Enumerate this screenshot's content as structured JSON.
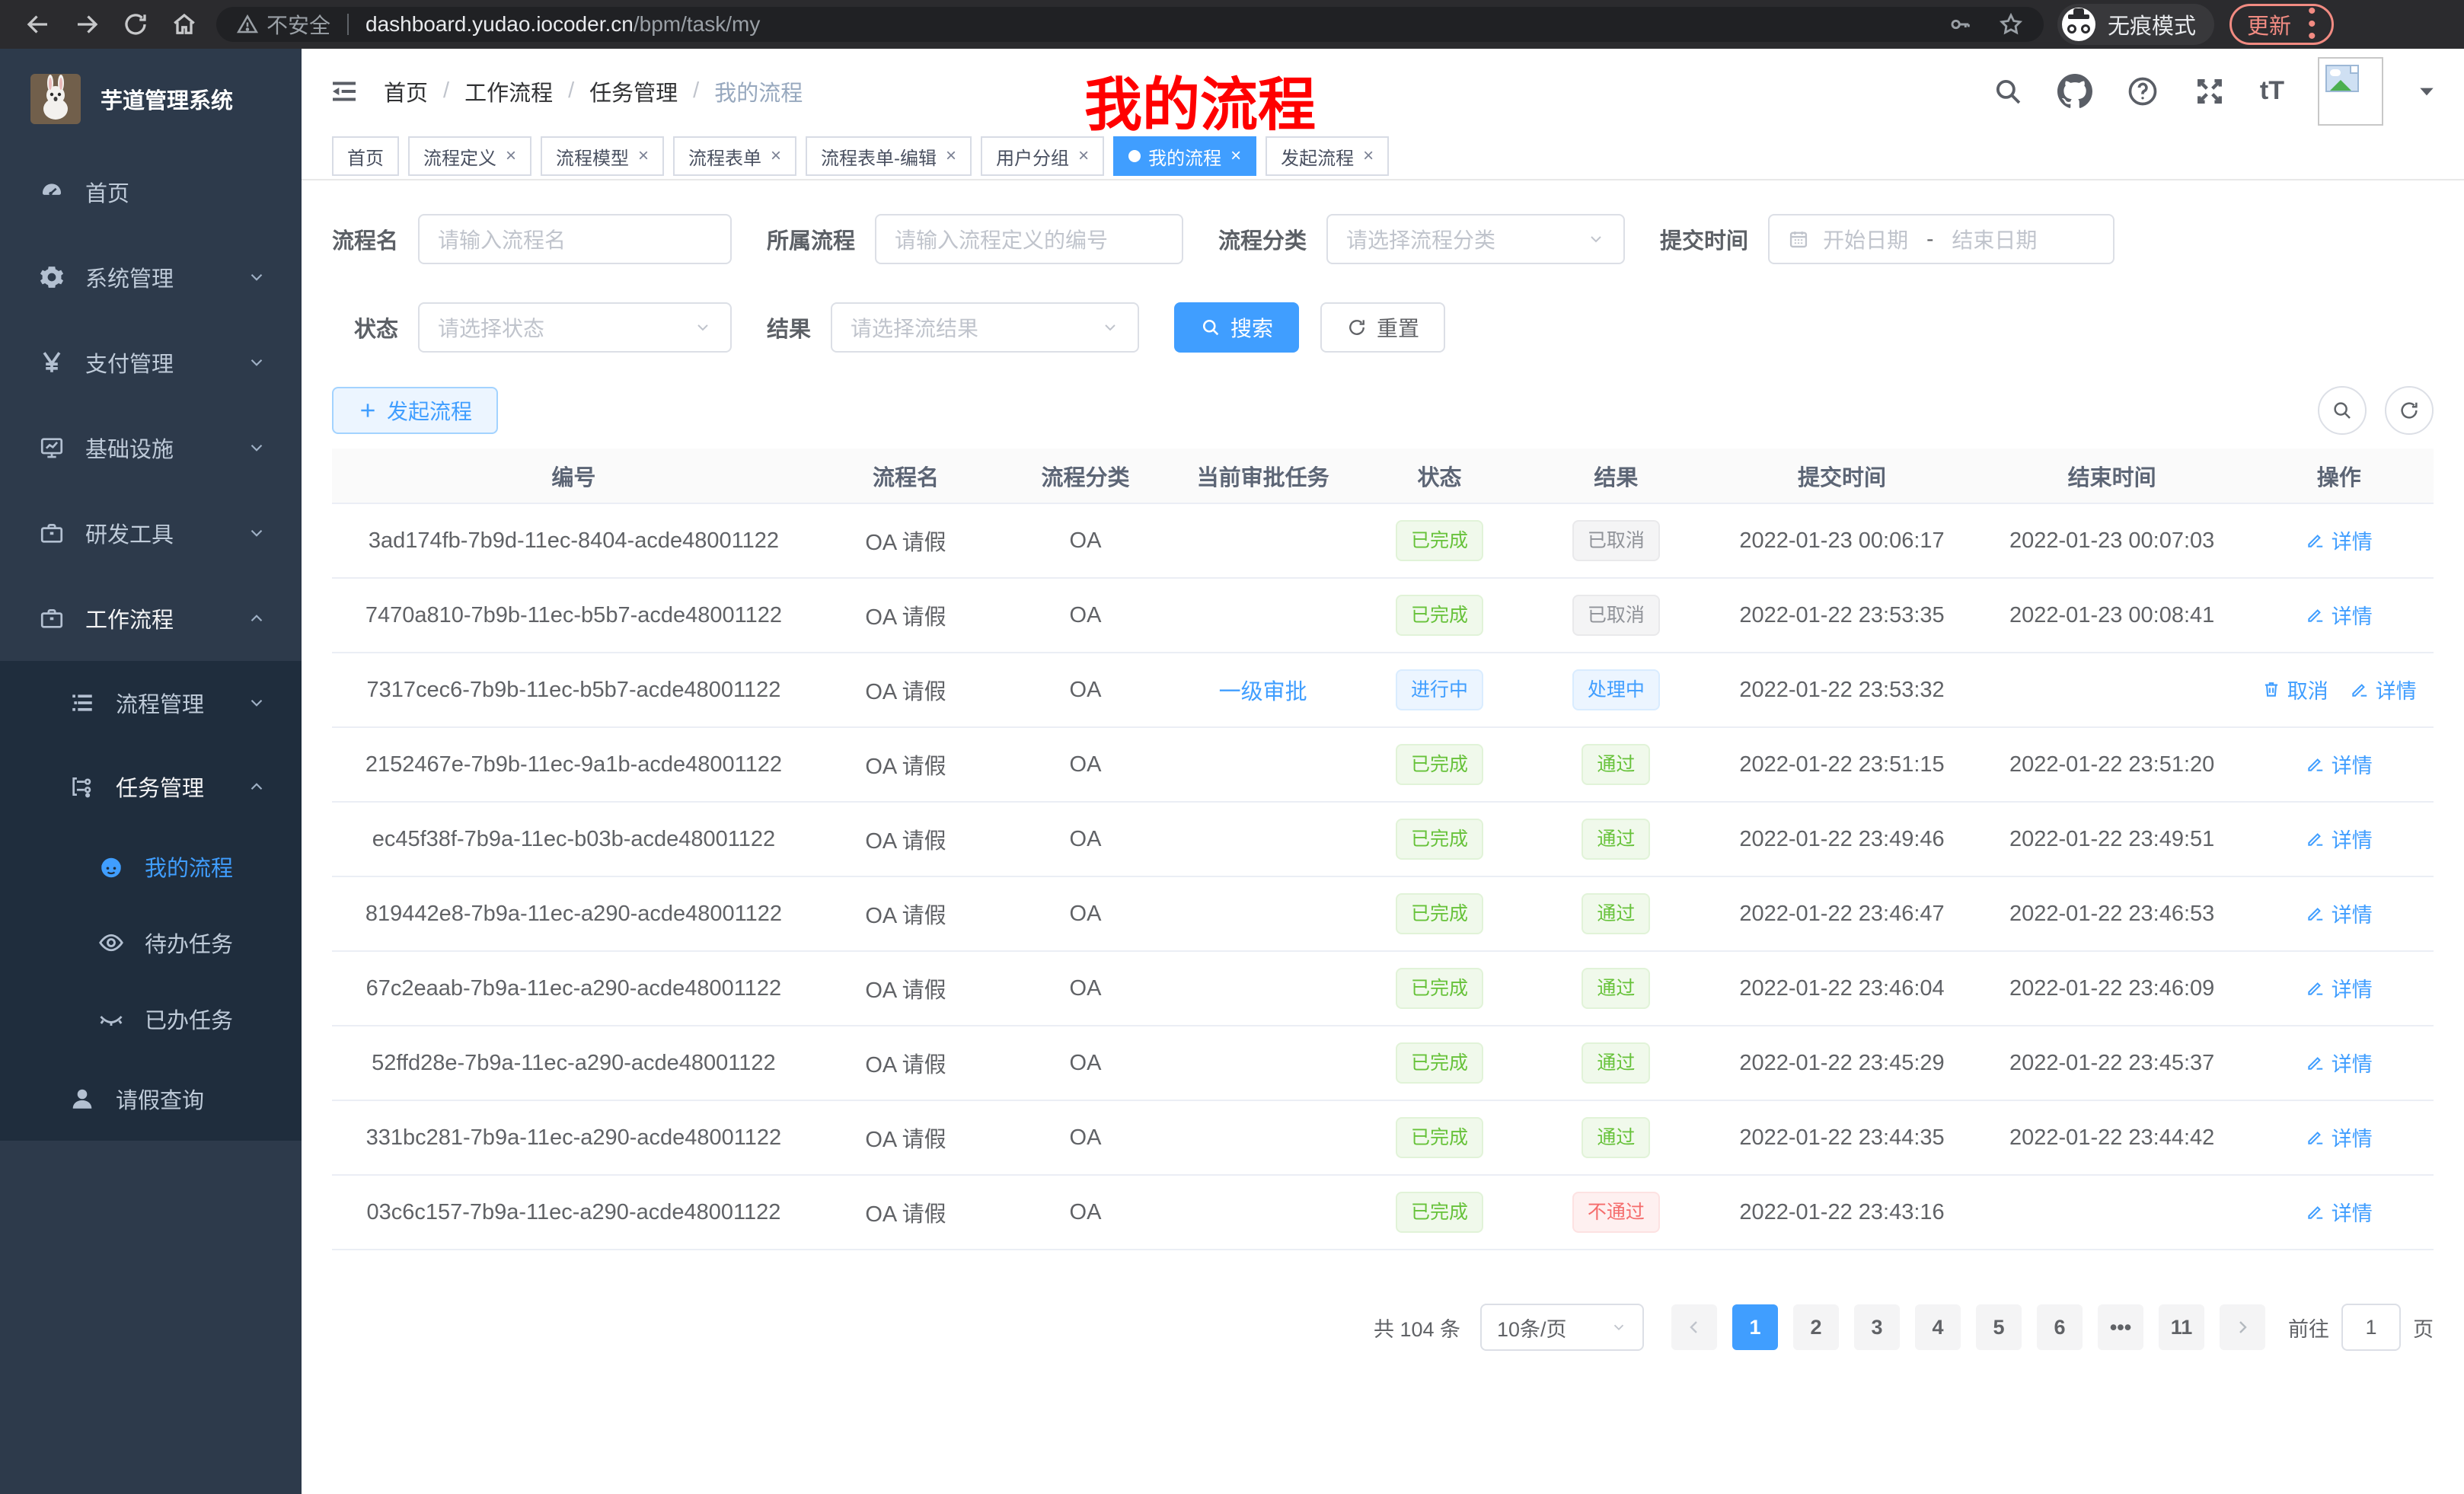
{
  "browser": {
    "security_label": "不安全",
    "url_host": "dashboard.yudao.iocoder.cn",
    "url_path": "/bpm/task/my",
    "incognito_label": "无痕模式",
    "update_label": "更新"
  },
  "sidebar": {
    "app_title": "芋道管理系统",
    "items": [
      {
        "label": "首页",
        "icon": "dashboard-icon",
        "level": 1
      },
      {
        "label": "系统管理",
        "icon": "gear-icon",
        "level": 1,
        "expand": "down"
      },
      {
        "label": "支付管理",
        "icon": "yen-icon",
        "level": 1,
        "expand": "down"
      },
      {
        "label": "基础设施",
        "icon": "monitor-icon",
        "level": 1,
        "expand": "down"
      },
      {
        "label": "研发工具",
        "icon": "briefcase-icon",
        "level": 1,
        "expand": "down"
      },
      {
        "label": "工作流程",
        "icon": "briefcase-icon",
        "level": 1,
        "expand": "up",
        "open": true
      },
      {
        "label": "流程管理",
        "icon": "list-icon",
        "level": 2,
        "expand": "down",
        "dark": true
      },
      {
        "label": "任务管理",
        "icon": "flow-icon",
        "level": 2,
        "expand": "up",
        "dark": true,
        "open": true
      },
      {
        "label": "我的流程",
        "icon": "face-icon",
        "level": 3,
        "dark": true,
        "active": true
      },
      {
        "label": "待办任务",
        "icon": "eye-icon",
        "level": 3,
        "dark": true
      },
      {
        "label": "已办任务",
        "icon": "eye-closed-icon",
        "level": 3,
        "dark": true
      },
      {
        "label": "请假查询",
        "icon": "person-icon",
        "level": 2,
        "dark": true
      }
    ]
  },
  "header": {
    "breadcrumb": [
      "首页",
      "工作流程",
      "任务管理",
      "我的流程"
    ],
    "annotation": "我的流程",
    "annotation_color": "#ff0000"
  },
  "tabs": [
    {
      "label": "首页",
      "closable": false,
      "active": false
    },
    {
      "label": "流程定义",
      "closable": true,
      "active": false
    },
    {
      "label": "流程模型",
      "closable": true,
      "active": false
    },
    {
      "label": "流程表单",
      "closable": true,
      "active": false
    },
    {
      "label": "流程表单-编辑",
      "closable": true,
      "active": false
    },
    {
      "label": "用户分组",
      "closable": true,
      "active": false
    },
    {
      "label": "我的流程",
      "closable": true,
      "active": true
    },
    {
      "label": "发起流程",
      "closable": true,
      "active": false
    }
  ],
  "filters": {
    "name": {
      "label": "流程名",
      "placeholder": "请输入流程名"
    },
    "process": {
      "label": "所属流程",
      "placeholder": "请输入流程定义的编号"
    },
    "category": {
      "label": "流程分类",
      "placeholder": "请选择流程分类"
    },
    "time": {
      "label": "提交时间",
      "start": "开始日期",
      "sep": "-",
      "end": "结束日期"
    },
    "status": {
      "label": "状态",
      "placeholder": "请选择状态"
    },
    "result": {
      "label": "结果",
      "placeholder": "请选择流结果"
    },
    "search_label": "搜索",
    "reset_label": "重置"
  },
  "toolbar": {
    "create_label": "发起流程"
  },
  "table": {
    "columns": [
      "编号",
      "流程名",
      "流程分类",
      "当前审批任务",
      "状态",
      "结果",
      "提交时间",
      "结束时间",
      "操作"
    ],
    "rows": [
      {
        "id": "3ad174fb-7b9d-11ec-8404-acde48001122",
        "name": "OA 请假",
        "category": "OA",
        "task": "",
        "status": {
          "text": "已完成",
          "type": "success"
        },
        "result": {
          "text": "已取消",
          "type": "info"
        },
        "submit": "2022-01-23 00:06:17",
        "end": "2022-01-23 00:07:03",
        "actions": [
          {
            "label": "详情",
            "icon": "pencil-icon"
          }
        ]
      },
      {
        "id": "7470a810-7b9b-11ec-b5b7-acde48001122",
        "name": "OA 请假",
        "category": "OA",
        "task": "",
        "status": {
          "text": "已完成",
          "type": "success"
        },
        "result": {
          "text": "已取消",
          "type": "info"
        },
        "submit": "2022-01-22 23:53:35",
        "end": "2022-01-23 00:08:41",
        "actions": [
          {
            "label": "详情",
            "icon": "pencil-icon"
          }
        ]
      },
      {
        "id": "7317cec6-7b9b-11ec-b5b7-acde48001122",
        "name": "OA 请假",
        "category": "OA",
        "task": "一级审批",
        "status": {
          "text": "进行中",
          "type": "primary"
        },
        "result": {
          "text": "处理中",
          "type": "primary"
        },
        "submit": "2022-01-22 23:53:32",
        "end": "",
        "actions": [
          {
            "label": "取消",
            "icon": "trash-icon"
          },
          {
            "label": "详情",
            "icon": "pencil-icon"
          }
        ]
      },
      {
        "id": "2152467e-7b9b-11ec-9a1b-acde48001122",
        "name": "OA 请假",
        "category": "OA",
        "task": "",
        "status": {
          "text": "已完成",
          "type": "success"
        },
        "result": {
          "text": "通过",
          "type": "success"
        },
        "submit": "2022-01-22 23:51:15",
        "end": "2022-01-22 23:51:20",
        "actions": [
          {
            "label": "详情",
            "icon": "pencil-icon"
          }
        ]
      },
      {
        "id": "ec45f38f-7b9a-11ec-b03b-acde48001122",
        "name": "OA 请假",
        "category": "OA",
        "task": "",
        "status": {
          "text": "已完成",
          "type": "success"
        },
        "result": {
          "text": "通过",
          "type": "success"
        },
        "submit": "2022-01-22 23:49:46",
        "end": "2022-01-22 23:49:51",
        "actions": [
          {
            "label": "详情",
            "icon": "pencil-icon"
          }
        ]
      },
      {
        "id": "819442e8-7b9a-11ec-a290-acde48001122",
        "name": "OA 请假",
        "category": "OA",
        "task": "",
        "status": {
          "text": "已完成",
          "type": "success"
        },
        "result": {
          "text": "通过",
          "type": "success"
        },
        "submit": "2022-01-22 23:46:47",
        "end": "2022-01-22 23:46:53",
        "actions": [
          {
            "label": "详情",
            "icon": "pencil-icon"
          }
        ]
      },
      {
        "id": "67c2eaab-7b9a-11ec-a290-acde48001122",
        "name": "OA 请假",
        "category": "OA",
        "task": "",
        "status": {
          "text": "已完成",
          "type": "success"
        },
        "result": {
          "text": "通过",
          "type": "success"
        },
        "submit": "2022-01-22 23:46:04",
        "end": "2022-01-22 23:46:09",
        "actions": [
          {
            "label": "详情",
            "icon": "pencil-icon"
          }
        ]
      },
      {
        "id": "52ffd28e-7b9a-11ec-a290-acde48001122",
        "name": "OA 请假",
        "category": "OA",
        "task": "",
        "status": {
          "text": "已完成",
          "type": "success"
        },
        "result": {
          "text": "通过",
          "type": "success"
        },
        "submit": "2022-01-22 23:45:29",
        "end": "2022-01-22 23:45:37",
        "actions": [
          {
            "label": "详情",
            "icon": "pencil-icon"
          }
        ]
      },
      {
        "id": "331bc281-7b9a-11ec-a290-acde48001122",
        "name": "OA 请假",
        "category": "OA",
        "task": "",
        "status": {
          "text": "已完成",
          "type": "success"
        },
        "result": {
          "text": "通过",
          "type": "success"
        },
        "submit": "2022-01-22 23:44:35",
        "end": "2022-01-22 23:44:42",
        "actions": [
          {
            "label": "详情",
            "icon": "pencil-icon"
          }
        ]
      },
      {
        "id": "03c6c157-7b9a-11ec-a290-acde48001122",
        "name": "OA 请假",
        "category": "OA",
        "task": "",
        "status": {
          "text": "已完成",
          "type": "success"
        },
        "result": {
          "text": "不通过",
          "type": "danger"
        },
        "submit": "2022-01-22 23:43:16",
        "end": "",
        "actions": [
          {
            "label": "详情",
            "icon": "pencil-icon"
          }
        ]
      }
    ]
  },
  "pagination": {
    "total_text": "共 104 条",
    "page_size": "10条/页",
    "pages": [
      "1",
      "2",
      "3",
      "4",
      "5",
      "6",
      "•••",
      "11"
    ],
    "active_page": "1",
    "goto_label": "前往",
    "goto_value": "1",
    "goto_suffix": "页"
  }
}
